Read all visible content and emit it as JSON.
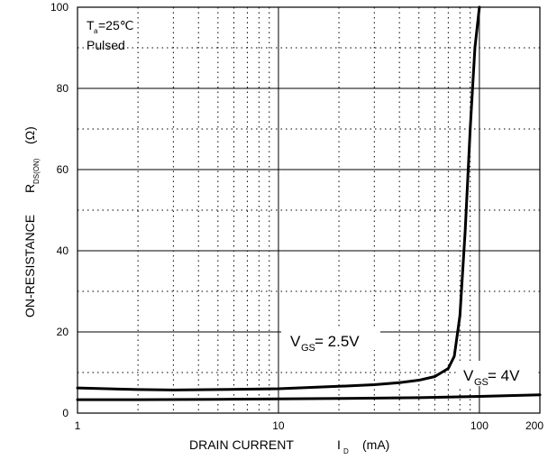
{
  "chart_data": {
    "type": "line",
    "title": "",
    "xlabel": {
      "text": "DRAIN CURRENT",
      "symbol": "I",
      "subscript": "D",
      "unit": "(mA)"
    },
    "ylabel": {
      "text": "ON-RESISTANCE",
      "symbol": "R",
      "subscript": "DS(ON)",
      "unit": "(Ω)"
    },
    "x_scale": "log",
    "xlim": [
      1,
      200
    ],
    "ylim": [
      0,
      100
    ],
    "x_ticks": [
      1,
      10,
      100,
      200
    ],
    "y_ticks": [
      0,
      20,
      40,
      60,
      80,
      100
    ],
    "grid": true,
    "conditions": {
      "ta": {
        "symbol": "T",
        "subscript": "a",
        "value": "=25℃"
      },
      "mode": "Pulsed"
    },
    "series": [
      {
        "name": "VGS = 2.5V",
        "label": {
          "pre": "V",
          "sub": "GS",
          "post": " = 2.5V"
        },
        "x": [
          1,
          2,
          3,
          5,
          10,
          20,
          30,
          40,
          50,
          60,
          70,
          75,
          80,
          85,
          90,
          95,
          100
        ],
        "y": [
          6.2,
          5.8,
          5.7,
          5.8,
          6.0,
          6.6,
          7.0,
          7.5,
          8.1,
          9.0,
          11.0,
          14.0,
          24.0,
          45.0,
          70.0,
          90.0,
          100.0
        ]
      },
      {
        "name": "VGS = 4V",
        "label": {
          "pre": "V",
          "sub": "GS",
          "post": " = 4V"
        },
        "x": [
          1,
          2,
          5,
          10,
          20,
          50,
          100,
          200
        ],
        "y": [
          3.3,
          3.3,
          3.4,
          3.5,
          3.6,
          3.8,
          4.1,
          4.5
        ]
      }
    ]
  }
}
